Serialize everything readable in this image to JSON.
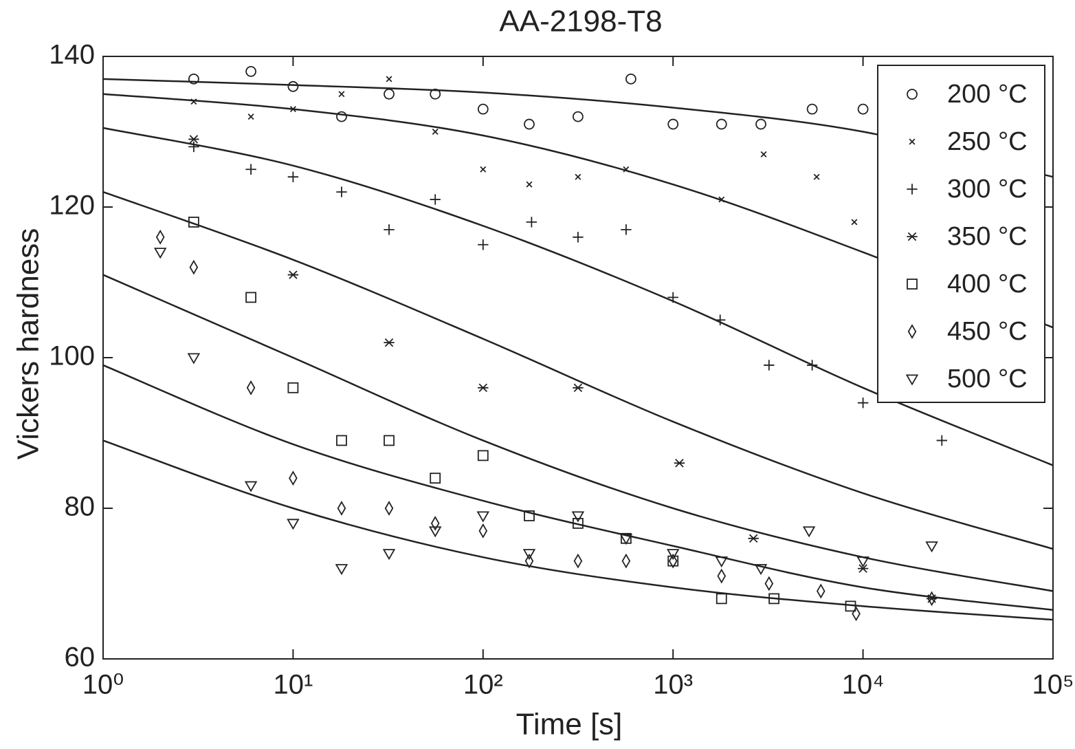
{
  "chart_data": {
    "type": "scatter",
    "title": "AA-2198-T8",
    "x_label": "Time [s]",
    "y_label": "Vickers hardness",
    "xscale": "log",
    "xlim": [
      1,
      100000
    ],
    "ylim": [
      60,
      140
    ],
    "xticks": [
      {
        "value": 1,
        "label": "10⁰"
      },
      {
        "value": 10,
        "label": "10¹"
      },
      {
        "value": 100,
        "label": "10²"
      },
      {
        "value": 1000,
        "label": "10³"
      },
      {
        "value": 10000,
        "label": "10⁴"
      },
      {
        "value": 100000,
        "label": "10⁵"
      }
    ],
    "yticks": [
      60,
      80,
      100,
      120,
      140
    ],
    "legend": "upper-right",
    "series": [
      {
        "name": "200 °C",
        "marker": "circle",
        "color": "#222222",
        "x": [
          3,
          6,
          10,
          18,
          32,
          56,
          100,
          175,
          316,
          600,
          1000,
          1800,
          2900,
          5400,
          10000
        ],
        "values": [
          137,
          138,
          136,
          132,
          135,
          135,
          133,
          131,
          132,
          137,
          131,
          131,
          131,
          133,
          133
        ]
      },
      {
        "name": "250 °C",
        "marker": "x",
        "color": "#222222",
        "x": [
          3,
          6,
          10,
          18,
          32,
          56,
          100,
          175,
          316,
          566,
          1800,
          3000,
          5700,
          9000
        ],
        "values": [
          134,
          132,
          133,
          135,
          137,
          130,
          125,
          123,
          124,
          125,
          121,
          127,
          124,
          118
        ]
      },
      {
        "name": "300 °C",
        "marker": "plus",
        "color": "#222222",
        "x": [
          3,
          6,
          10,
          18,
          32,
          56,
          100,
          180,
          316,
          566,
          1000,
          1770,
          3200,
          5400,
          10000,
          26000
        ],
        "values": [
          128,
          125,
          124,
          122,
          117,
          121,
          115,
          118,
          116,
          117,
          108,
          105,
          99,
          99,
          94,
          89
        ]
      },
      {
        "name": "350 °C",
        "marker": "asterisk",
        "color": "#222222",
        "x": [
          3,
          10,
          32,
          100,
          316,
          1080,
          2650,
          10000,
          23000
        ],
        "values": [
          129,
          111,
          102,
          96,
          96,
          86,
          76,
          72,
          68
        ]
      },
      {
        "name": "400 °C",
        "marker": "square",
        "color": "#222222",
        "x": [
          3,
          6,
          10,
          18,
          32,
          56,
          100,
          175,
          316,
          566,
          1000,
          1800,
          3400,
          8600
        ],
        "values": [
          118,
          108,
          96,
          89,
          89,
          84,
          87,
          79,
          78,
          76,
          73,
          68,
          68,
          67
        ]
      },
      {
        "name": "450 °C",
        "marker": "diamond",
        "color": "#222222",
        "x": [
          2,
          3,
          6,
          10,
          18,
          32,
          56,
          100,
          175,
          316,
          566,
          1000,
          1800,
          3200,
          6000,
          9200,
          23000
        ],
        "values": [
          116,
          112,
          96,
          84,
          80,
          80,
          78,
          77,
          73,
          73,
          73,
          73,
          71,
          70,
          69,
          66,
          68
        ]
      },
      {
        "name": "500 °C",
        "marker": "triangle-down",
        "color": "#222222",
        "x": [
          2,
          3,
          6,
          10,
          18,
          32,
          56,
          100,
          175,
          316,
          566,
          1000,
          1800,
          2900,
          5200,
          10000,
          23000
        ],
        "values": [
          114,
          100,
          83,
          78,
          72,
          74,
          77,
          79,
          74,
          79,
          76,
          74,
          73,
          72,
          77,
          73,
          75
        ]
      }
    ],
    "fit_x": [
      1,
      10,
      100,
      1000,
      10000,
      100000
    ],
    "fits": [
      {
        "values": [
          137,
          136.2,
          135.2,
          133.2,
          130,
          124
        ]
      },
      {
        "values": [
          135,
          133,
          129.5,
          123,
          114,
          104
        ]
      },
      {
        "values": [
          130.5,
          125.5,
          117.5,
          107.5,
          96,
          85.7
        ]
      },
      {
        "values": [
          122,
          113,
          102.5,
          91.5,
          82,
          74.6
        ]
      },
      {
        "values": [
          111,
          100,
          89,
          80,
          73.5,
          69
        ]
      },
      {
        "values": [
          99,
          88.5,
          81,
          75,
          69.5,
          66.5
        ]
      },
      {
        "values": [
          89,
          80,
          73.5,
          69.5,
          67,
          65.2
        ]
      }
    ]
  }
}
